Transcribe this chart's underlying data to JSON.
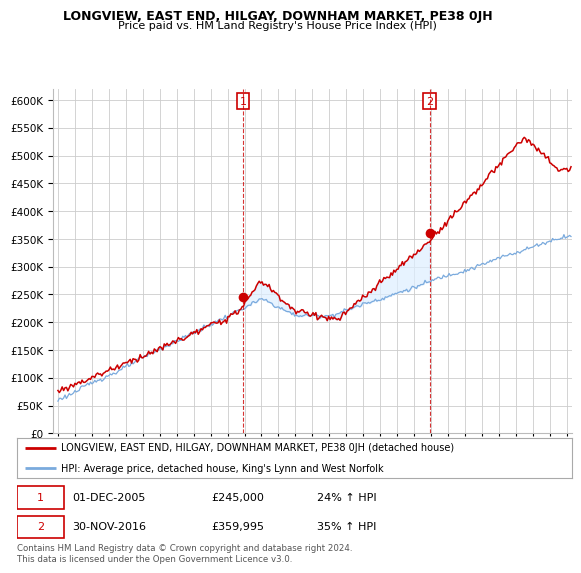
{
  "title": "LONGVIEW, EAST END, HILGAY, DOWNHAM MARKET, PE38 0JH",
  "subtitle": "Price paid vs. HM Land Registry's House Price Index (HPI)",
  "legend_entry1": "LONGVIEW, EAST END, HILGAY, DOWNHAM MARKET, PE38 0JH (detached house)",
  "legend_entry2": "HPI: Average price, detached house, King's Lynn and West Norfolk",
  "annotation1_date": "01-DEC-2005",
  "annotation1_price": "£245,000",
  "annotation1_hpi": "24% ↑ HPI",
  "annotation2_date": "30-NOV-2016",
  "annotation2_price": "£359,995",
  "annotation2_hpi": "35% ↑ HPI",
  "footer": "Contains HM Land Registry data © Crown copyright and database right 2024.\nThis data is licensed under the Open Government Licence v3.0.",
  "ylim_min": 0,
  "ylim_max": 620000,
  "yticks": [
    0,
    50000,
    100000,
    150000,
    200000,
    250000,
    300000,
    350000,
    400000,
    450000,
    500000,
    550000,
    600000
  ],
  "plot_color_red": "#cc0000",
  "plot_color_blue": "#7aaadd",
  "background_color": "#ffffff",
  "grid_color": "#cccccc",
  "shade_color": "#ddeeff",
  "ann1_x_year": 2005.92,
  "ann1_y": 245000,
  "ann2_x_year": 2016.92,
  "ann2_y": 359995,
  "xmin": 1995.0,
  "xmax": 2025.3
}
